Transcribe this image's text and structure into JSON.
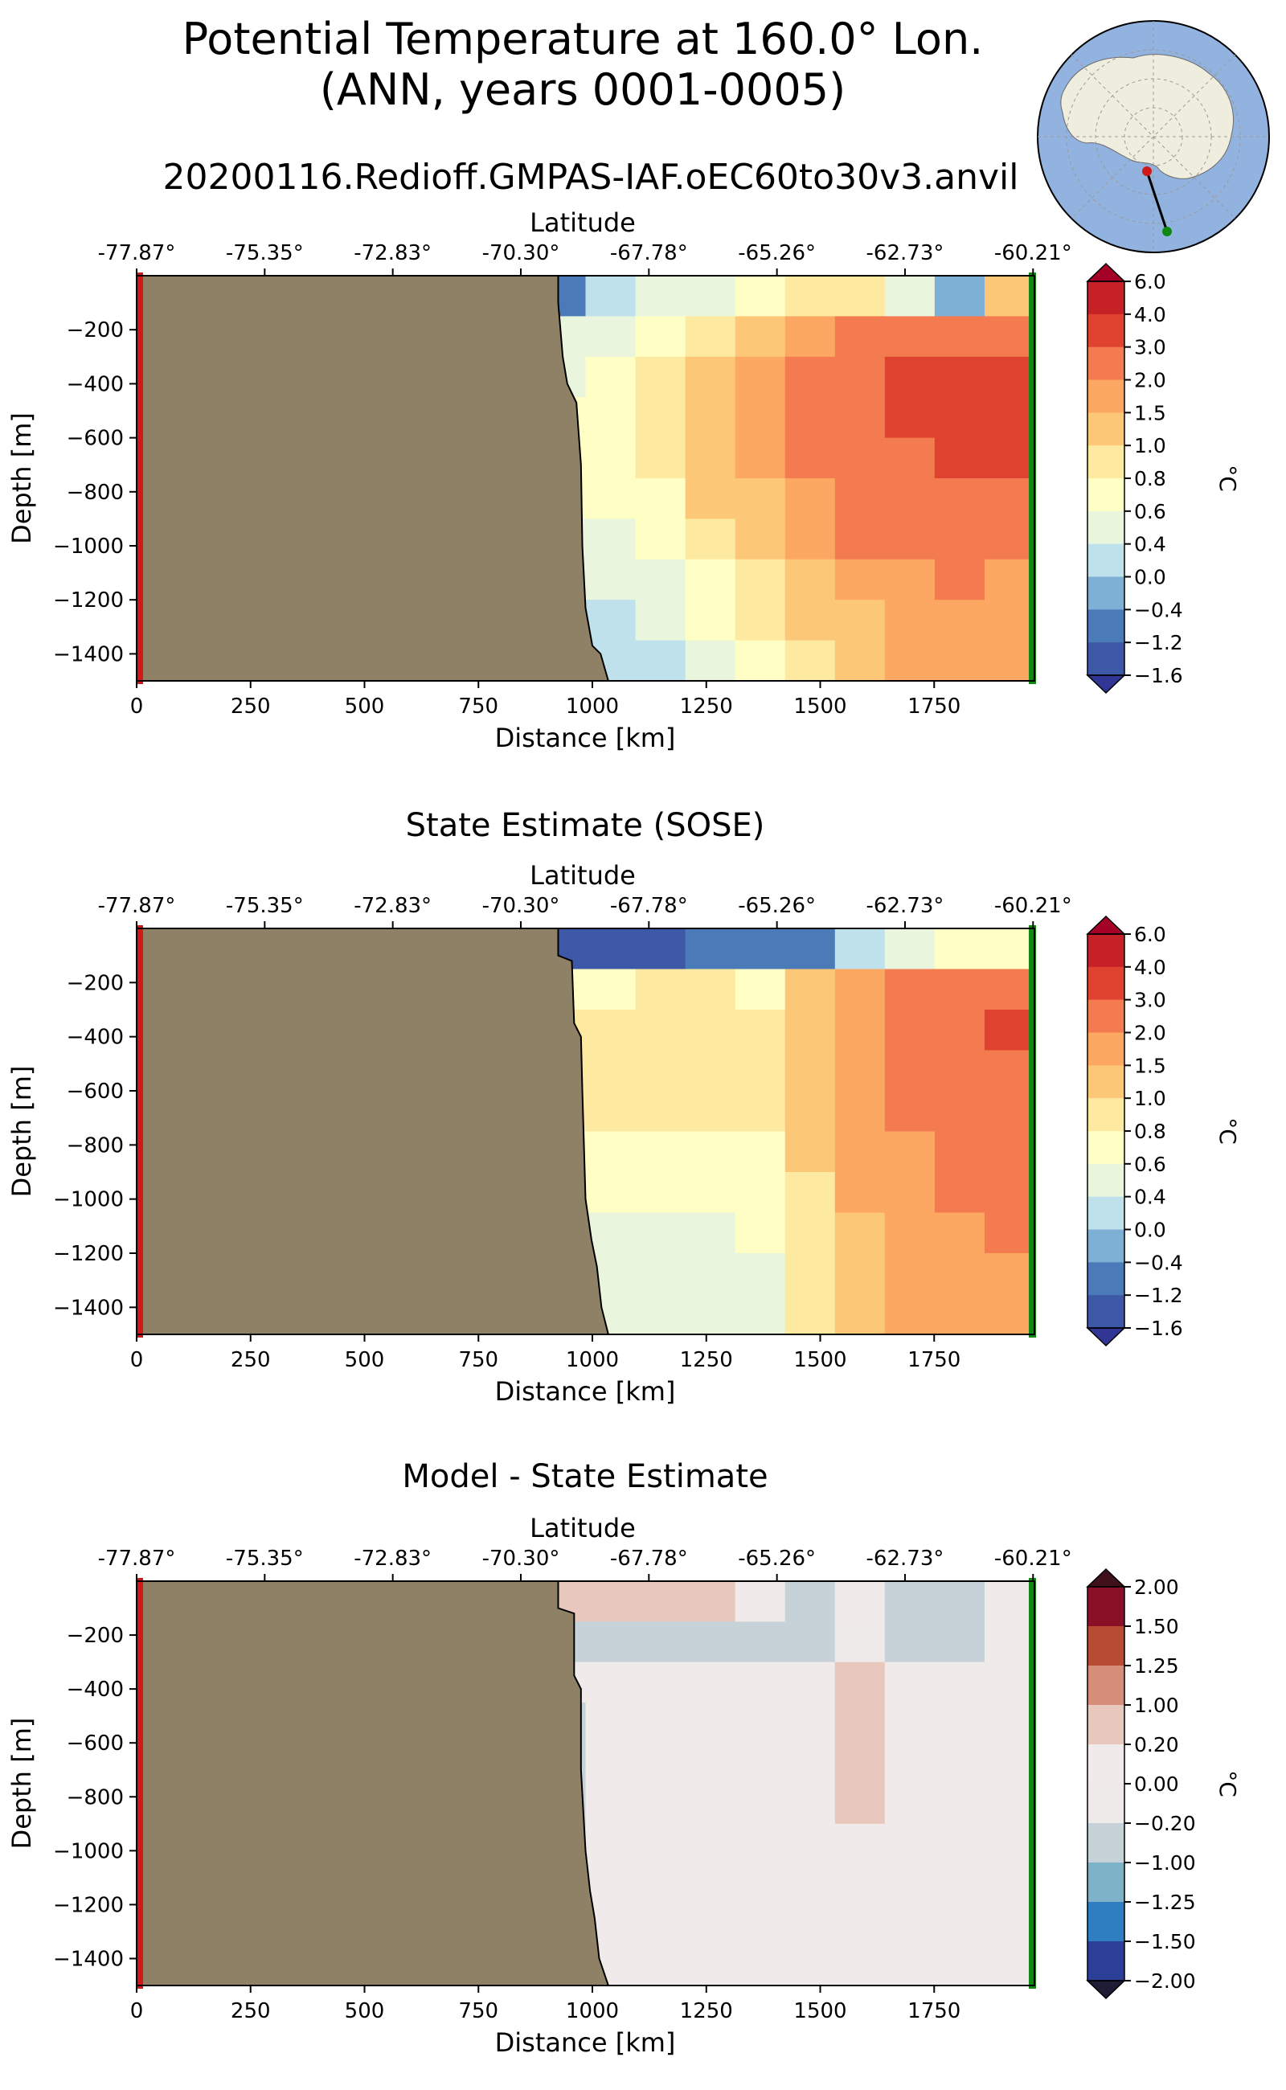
{
  "figure": {
    "title_line1": "Potential Temperature at 160.0° Lon.",
    "title_line2": "(ANN, years 0001-0005)",
    "run_name": "20200116.Redioff.GMPAS-IAF.oEC60to30v3.anvil"
  },
  "colors": {
    "land": "#8f8166",
    "start_marker": "#d01818",
    "end_marker": "#118811",
    "map_ocean": "#92b3df",
    "map_land": "#efedde"
  },
  "chart_data": [
    {
      "type": "heatmap",
      "panel": "model",
      "title": "",
      "xlabel": "Distance [km]",
      "ylabel": "Depth [m]",
      "top_axis_label": "Latitude",
      "xlim": [
        0,
        1970
      ],
      "ylim": [
        -1500,
        0
      ],
      "x_ticks": [
        0,
        250,
        500,
        750,
        1000,
        1250,
        1500,
        1750
      ],
      "x_tick_labels": [
        "0",
        "250",
        "500",
        "750",
        "1000",
        "1250",
        "1500",
        "1750"
      ],
      "y_ticks": [
        -200,
        -400,
        -600,
        -800,
        -1000,
        -1200,
        -1400
      ],
      "y_tick_labels": [
        "−200",
        "−400",
        "−600",
        "−800",
        "−1000",
        "−1200",
        "−1400"
      ],
      "top_ticks": [
        0,
        281,
        562,
        843,
        1124,
        1405,
        1686,
        1967
      ],
      "top_tick_labels": [
        "-77.87°",
        "-75.35°",
        "-72.83°",
        "-70.30°",
        "-67.78°",
        "-65.26°",
        "-62.73°",
        "-60.21°"
      ],
      "colorbar": {
        "label": "°C",
        "levels": [
          "−1.6",
          "−1.2",
          "−0.4",
          "0.0",
          "0.4",
          "0.6",
          "0.8",
          "1.0",
          "1.5",
          "2.0",
          "3.0",
          "4.0",
          "6.0"
        ],
        "colors": [
          "#313695",
          "#3e58a8",
          "#4a7ab8",
          "#7eb0d5",
          "#bfe1ec",
          "#e9f5dd",
          "#ffffc5",
          "#fde9a0",
          "#fdc778",
          "#fca762",
          "#f37b4f",
          "#e04230",
          "#c62127",
          "#a50026"
        ],
        "extend": "both"
      },
      "land_boundary": [
        [
          925,
          0
        ],
        [
          925,
          -100
        ],
        [
          935,
          -300
        ],
        [
          945,
          -400
        ],
        [
          965,
          -470
        ],
        [
          975,
          -700
        ],
        [
          978,
          -1000
        ],
        [
          985,
          -1230
        ],
        [
          1000,
          -1370
        ],
        [
          1018,
          -1400
        ],
        [
          1035,
          -1500
        ]
      ],
      "field": [
        [
          0.55,
          0.2,
          -0.7,
          -1.6,
          -1.4,
          -1.3,
          -1.4,
          -1.2,
          -0.6,
          0.3,
          0.4,
          0.5,
          0.6,
          0.9,
          0.8,
          0.5,
          -0.2,
          1.0
        ],
        [
          0.55,
          0.2,
          -0.4,
          -1.2,
          -1.0,
          -0.6,
          -0.3,
          0.1,
          0.4,
          0.5,
          0.6,
          0.8,
          1.2,
          1.7,
          2.3,
          2.5,
          2.6,
          2.5
        ],
        [
          0.55,
          0.2,
          -0.2,
          -0.3,
          -0.1,
          0.35,
          0.55,
          0.5,
          0.45,
          0.6,
          0.8,
          1.1,
          1.6,
          2.1,
          2.7,
          3.0,
          3.2,
          3.5
        ],
        [
          0.55,
          0.2,
          0.1,
          0.1,
          0.25,
          0.45,
          0.65,
          0.75,
          0.7,
          0.65,
          0.9,
          1.2,
          1.7,
          2.2,
          2.7,
          3.0,
          3.2,
          3.5
        ],
        [
          0.55,
          0.2,
          0.2,
          0.2,
          0.3,
          0.5,
          0.7,
          0.8,
          0.75,
          0.7,
          0.9,
          1.2,
          1.6,
          2.1,
          2.6,
          2.8,
          3.0,
          3.1
        ],
        [
          0.55,
          0.2,
          0.2,
          0.2,
          0.3,
          0.45,
          0.62,
          0.65,
          0.65,
          0.6,
          0.75,
          1.0,
          1.4,
          1.9,
          2.3,
          2.5,
          2.7,
          2.7
        ],
        [
          0.55,
          0.2,
          0.2,
          0.2,
          0.3,
          0.38,
          0.45,
          0.5,
          0.5,
          0.5,
          0.65,
          0.85,
          1.2,
          1.6,
          2.0,
          2.2,
          2.3,
          2.2
        ],
        [
          0.55,
          0.2,
          0.2,
          0.2,
          0.25,
          0.3,
          0.35,
          0.38,
          0.4,
          0.45,
          0.55,
          0.7,
          0.95,
          1.3,
          1.7,
          1.9,
          2.0,
          1.9
        ],
        [
          0.55,
          0.2,
          0.2,
          0.2,
          0.2,
          0.25,
          0.3,
          0.3,
          0.32,
          0.35,
          0.45,
          0.6,
          0.8,
          1.1,
          1.4,
          1.7,
          1.8,
          1.7
        ],
        [
          0.55,
          0.2,
          0.2,
          0.2,
          0.2,
          0.2,
          0.25,
          0.25,
          0.28,
          0.3,
          0.38,
          0.5,
          0.7,
          0.95,
          1.3,
          1.5,
          1.6,
          1.6
        ]
      ]
    },
    {
      "type": "heatmap",
      "panel": "sose",
      "title": "State Estimate (SOSE)",
      "xlabel": "Distance [km]",
      "ylabel": "Depth [m]",
      "top_axis_label": "Latitude",
      "xlim": [
        0,
        1970
      ],
      "ylim": [
        -1500,
        0
      ],
      "x_ticks": [
        0,
        250,
        500,
        750,
        1000,
        1250,
        1500,
        1750
      ],
      "x_tick_labels": [
        "0",
        "250",
        "500",
        "750",
        "1000",
        "1250",
        "1500",
        "1750"
      ],
      "y_ticks": [
        -200,
        -400,
        -600,
        -800,
        -1000,
        -1200,
        -1400
      ],
      "y_tick_labels": [
        "−200",
        "−400",
        "−600",
        "−800",
        "−1000",
        "−1200",
        "−1400"
      ],
      "top_ticks": [
        0,
        281,
        562,
        843,
        1124,
        1405,
        1686,
        1967
      ],
      "top_tick_labels": [
        "-77.87°",
        "-75.35°",
        "-72.83°",
        "-70.30°",
        "-67.78°",
        "-65.26°",
        "-62.73°",
        "-60.21°"
      ],
      "colorbar": {
        "label": "°C",
        "levels": [
          "−1.6",
          "−1.2",
          "−0.4",
          "0.0",
          "0.4",
          "0.6",
          "0.8",
          "1.0",
          "1.5",
          "2.0",
          "3.0",
          "4.0",
          "6.0"
        ],
        "colors": [
          "#313695",
          "#3e58a8",
          "#4a7ab8",
          "#7eb0d5",
          "#bfe1ec",
          "#e9f5dd",
          "#ffffc5",
          "#fde9a0",
          "#fdc778",
          "#fca762",
          "#f37b4f",
          "#e04230",
          "#c62127",
          "#a50026"
        ],
        "extend": "both"
      },
      "land_boundary": [
        [
          925,
          0
        ],
        [
          925,
          -100
        ],
        [
          955,
          -120
        ],
        [
          960,
          -350
        ],
        [
          975,
          -400
        ],
        [
          978,
          -600
        ],
        [
          985,
          -1000
        ],
        [
          998,
          -1150
        ],
        [
          1010,
          -1250
        ],
        [
          1020,
          -1400
        ],
        [
          1035,
          -1500
        ]
      ],
      "field": [
        [
          0.55,
          0.2,
          -1.6,
          -1.8,
          -1.7,
          -1.6,
          -1.6,
          -1.5,
          -1.4,
          -1.4,
          -1.3,
          -1.2,
          -1.2,
          -1.0,
          0.2,
          0.5,
          0.6,
          0.7
        ],
        [
          0.55,
          0.2,
          -1.0,
          -1.2,
          -0.2,
          0.5,
          0.7,
          0.7,
          0.7,
          0.75,
          0.8,
          0.8,
          0.7,
          1.0,
          1.7,
          2.1,
          2.4,
          2.3
        ],
        [
          0.55,
          0.2,
          -0.6,
          -0.4,
          0.7,
          0.95,
          0.9,
          0.85,
          0.85,
          0.85,
          0.9,
          0.9,
          0.8,
          1.2,
          1.8,
          2.2,
          2.5,
          3.5
        ],
        [
          0.55,
          0.2,
          -0.3,
          0.1,
          0.7,
          0.85,
          0.85,
          0.85,
          0.85,
          0.85,
          0.85,
          0.85,
          0.8,
          1.2,
          1.8,
          2.1,
          2.3,
          2.5
        ],
        [
          0.55,
          0.2,
          -0.1,
          0.2,
          0.65,
          0.8,
          0.8,
          0.8,
          0.8,
          0.8,
          0.8,
          0.8,
          0.8,
          1.1,
          1.7,
          2.0,
          2.2,
          2.3
        ],
        [
          0.55,
          0.2,
          0.0,
          0.3,
          0.6,
          0.75,
          0.75,
          0.75,
          0.75,
          0.75,
          0.75,
          0.75,
          0.7,
          1.0,
          1.6,
          1.9,
          2.1,
          2.2
        ],
        [
          0.55,
          0.2,
          0.1,
          0.3,
          0.6,
          0.7,
          0.7,
          0.7,
          0.7,
          0.7,
          0.7,
          0.7,
          0.65,
          0.9,
          1.5,
          1.8,
          2.0,
          2.1
        ],
        [
          0.55,
          0.2,
          0.2,
          0.3,
          0.55,
          0.6,
          0.6,
          0.6,
          0.55,
          0.55,
          0.55,
          0.55,
          0.6,
          0.85,
          1.4,
          1.7,
          1.9,
          2.0
        ],
        [
          0.55,
          0.2,
          0.2,
          0.3,
          0.45,
          0.5,
          0.5,
          0.5,
          0.5,
          0.5,
          0.5,
          0.5,
          0.55,
          0.8,
          1.3,
          1.6,
          1.8,
          1.9
        ],
        [
          0.55,
          0.2,
          0.2,
          0.3,
          0.45,
          0.5,
          0.5,
          0.5,
          0.5,
          0.5,
          0.5,
          0.5,
          0.55,
          0.8,
          1.3,
          1.6,
          1.8,
          1.9
        ]
      ]
    },
    {
      "type": "heatmap",
      "panel": "bias",
      "title": "Model - State Estimate",
      "xlabel": "Distance [km]",
      "ylabel": "Depth [m]",
      "top_axis_label": "Latitude",
      "xlim": [
        0,
        1970
      ],
      "ylim": [
        -1500,
        0
      ],
      "x_ticks": [
        0,
        250,
        500,
        750,
        1000,
        1250,
        1500,
        1750
      ],
      "x_tick_labels": [
        "0",
        "250",
        "500",
        "750",
        "1000",
        "1250",
        "1500",
        "1750"
      ],
      "y_ticks": [
        -200,
        -400,
        -600,
        -800,
        -1000,
        -1200,
        -1400
      ],
      "y_tick_labels": [
        "−200",
        "−400",
        "−600",
        "−800",
        "−1000",
        "−1200",
        "−1400"
      ],
      "top_ticks": [
        0,
        281,
        562,
        843,
        1124,
        1405,
        1686,
        1967
      ],
      "top_tick_labels": [
        "-77.87°",
        "-75.35°",
        "-72.83°",
        "-70.30°",
        "-67.78°",
        "-65.26°",
        "-62.73°",
        "-60.21°"
      ],
      "colorbar": {
        "label": "°C",
        "levels": [
          "−2.00",
          "−1.50",
          "−1.25",
          "−1.00",
          "−0.20",
          "0.00",
          "0.20",
          "1.00",
          "1.25",
          "1.50",
          "2.00"
        ],
        "colors": [
          "#1f1c35",
          "#2b3f99",
          "#2f7ec1",
          "#7db2c9",
          "#c7d2d8",
          "#efeaea",
          "#f0ebea",
          "#e8c8bc",
          "#d58f78",
          "#b84b33",
          "#8a1028",
          "#40101b"
        ],
        "extend": "both"
      },
      "land_boundary": [
        [
          925,
          0
        ],
        [
          925,
          -100
        ],
        [
          960,
          -120
        ],
        [
          960,
          -350
        ],
        [
          975,
          -400
        ],
        [
          975,
          -700
        ],
        [
          985,
          -1000
        ],
        [
          995,
          -1150
        ],
        [
          1005,
          -1250
        ],
        [
          1015,
          -1400
        ],
        [
          1035,
          -1500
        ]
      ],
      "field": [
        [
          0.0,
          0.0,
          0.3,
          0.35,
          0.3,
          0.25,
          0.25,
          0.25,
          0.25,
          0.25,
          0.2,
          0.2,
          0.0,
          -0.3,
          0.0,
          -0.4,
          -0.3,
          0.0
        ],
        [
          0.0,
          0.0,
          0.3,
          0.1,
          -1.1,
          -0.3,
          0.0,
          -0.25,
          -0.25,
          -0.3,
          -0.3,
          -0.3,
          -0.3,
          -0.3,
          -0.2,
          -0.3,
          -0.5,
          0.0
        ],
        [
          0.0,
          0.0,
          0.3,
          0.0,
          -0.3,
          0.0,
          0.0,
          -0.25,
          0.0,
          0.0,
          0.0,
          0.0,
          0.0,
          0.0,
          0.25,
          0.0,
          0.0,
          0.0
        ],
        [
          0.0,
          0.0,
          0.25,
          0.0,
          -0.3,
          0.0,
          0.0,
          0.0,
          -0.3,
          0.0,
          0.0,
          0.0,
          0.0,
          0.0,
          0.3,
          0.0,
          0.0,
          0.0
        ],
        [
          0.0,
          0.0,
          0.25,
          0.0,
          -0.3,
          0.0,
          0.0,
          0.0,
          -0.3,
          0.0,
          0.0,
          0.0,
          0.0,
          0.0,
          0.3,
          0.0,
          0.0,
          0.0
        ],
        [
          0.0,
          0.0,
          0.2,
          0.0,
          -0.3,
          0.0,
          0.0,
          0.0,
          -0.3,
          0.0,
          0.0,
          0.0,
          0.0,
          0.0,
          0.25,
          0.0,
          0.0,
          0.0
        ],
        [
          0.0,
          0.0,
          0.1,
          0.0,
          -0.3,
          0.0,
          0.0,
          0.0,
          -0.25,
          0.0,
          0.0,
          0.0,
          0.0,
          0.0,
          0.0,
          0.0,
          0.0,
          0.0
        ],
        [
          0.0,
          0.0,
          0.0,
          0.0,
          -0.3,
          0.0,
          0.0,
          0.0,
          0.0,
          0.0,
          0.0,
          0.0,
          0.0,
          0.0,
          0.0,
          0.0,
          0.0,
          0.0
        ],
        [
          0.0,
          0.0,
          0.0,
          0.0,
          -0.25,
          0.0,
          0.0,
          0.0,
          0.0,
          0.0,
          0.0,
          0.0,
          0.0,
          0.0,
          0.0,
          0.0,
          0.0,
          0.0
        ],
        [
          0.0,
          0.0,
          0.0,
          0.0,
          -0.25,
          0.0,
          0.0,
          0.0,
          0.0,
          0.0,
          0.0,
          0.0,
          0.0,
          0.0,
          0.0,
          0.0,
          0.0,
          0.0
        ]
      ]
    }
  ]
}
